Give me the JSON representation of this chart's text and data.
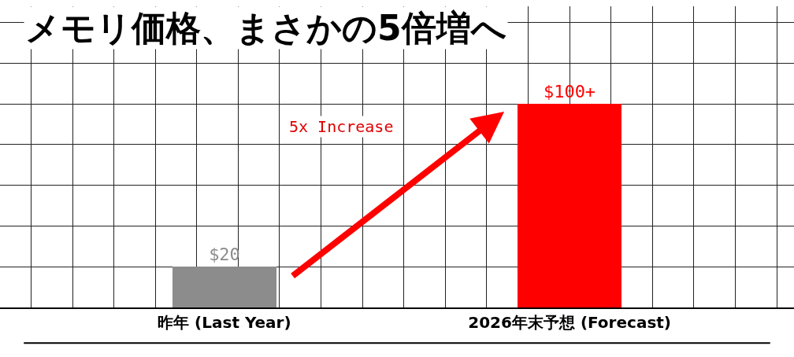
{
  "chart_data": {
    "type": "bar",
    "title": "メモリ価格、まさかの5倍増へ",
    "categories": [
      "昨年 (Last Year)",
      "2026年末予想 (Forecast)"
    ],
    "values": [
      20,
      100
    ],
    "colors": [
      "#8c8c8c",
      "#ff0000"
    ],
    "value_labels": [
      "$20",
      "$100+"
    ],
    "ylim": [
      0,
      148
    ],
    "tick_labels": "x",
    "grid": true,
    "annotations": [
      "5x Increase"
    ]
  }
}
